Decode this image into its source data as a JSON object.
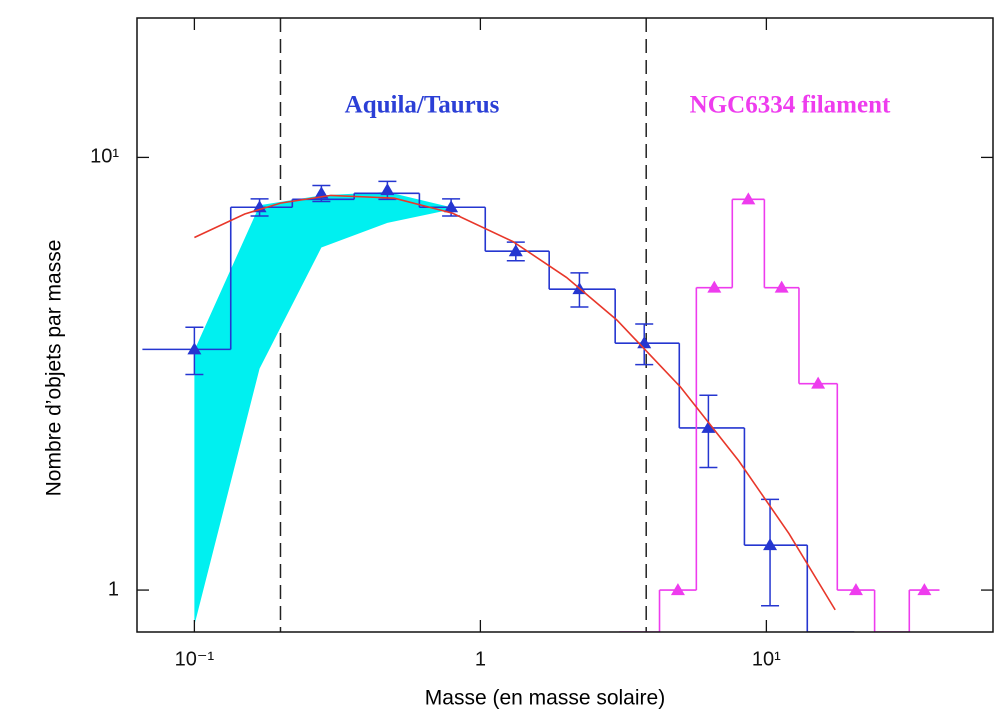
{
  "chart_data": {
    "type": "line",
    "xlabel": "Masse (en masse solaire)",
    "ylabel": "Nombre d’objets par masse",
    "xscale": "log",
    "yscale": "log",
    "xlim": [
      0.063,
      62
    ],
    "ylim": [
      0.8,
      21
    ],
    "xticks": [
      {
        "value": 0.1,
        "label": "10⁻¹"
      },
      1,
      {
        "value": 10,
        "label": "10¹"
      }
    ],
    "yticks": [
      1,
      {
        "value": 10,
        "label": "10¹"
      }
    ],
    "vlines": [
      0.2,
      3.8
    ],
    "annotations": [
      {
        "text": "Aquila/Taurus",
        "color": "#2b3fd6"
      },
      {
        "text": "NGC6334 filament",
        "color": "#ee3cee"
      }
    ],
    "series": [
      {
        "type": "band",
        "color": "#00f0f0",
        "x": [
          0.1,
          0.169,
          0.278,
          0.473,
          0.79
        ],
        "upper": [
          3.58,
          7.75,
          8.17,
          8.32,
          7.67
        ],
        "lower": [
          0.83,
          3.25,
          6.19,
          7.06,
          7.58
        ]
      },
      {
        "type": "step",
        "color": "#2536d0",
        "bins": [
          0.0658,
          0.134,
          0.22,
          0.362,
          0.612,
          1.04,
          1.74,
          2.96,
          4.96,
          8.38,
          13.9,
          20.3
        ],
        "values": [
          3.6,
          7.67,
          8.0,
          8.26,
          7.67,
          6.07,
          4.96,
          3.72,
          2.37,
          1.27,
          0.8
        ]
      },
      {
        "type": "step",
        "color": "#ee3cee",
        "markers": true,
        "bins": [
          3.06,
          4.23,
          5.69,
          7.6,
          9.84,
          13.0,
          17.7,
          23.9,
          31.6,
          40.3
        ],
        "values": [
          0.8,
          1,
          5,
          8,
          5,
          3,
          1,
          0.8,
          1
        ]
      },
      {
        "type": "errorbar",
        "color": "#2536d0",
        "x": [
          0.1,
          0.169,
          0.278,
          0.473,
          0.79,
          1.33,
          2.22,
          3.74,
          6.27,
          10.3
        ],
        "values": [
          3.6,
          7.67,
          8.26,
          8.4,
          7.67,
          6.07,
          4.96,
          3.72,
          2.37,
          1.27
        ],
        "errors": [
          0.45,
          0.35,
          0.35,
          0.4,
          0.35,
          0.3,
          0.45,
          0.4,
          0.45,
          0.35
        ]
      },
      {
        "type": "line",
        "color": "#e8372a",
        "x": [
          0.1,
          0.15,
          0.2,
          0.3,
          0.5,
          0.8,
          1.3,
          2,
          3,
          5,
          8,
          12,
          17.4
        ],
        "values": [
          6.53,
          7.4,
          7.84,
          8.17,
          8.05,
          7.43,
          6.39,
          5.28,
          4.21,
          2.95,
          1.99,
          1.35,
          0.9
        ]
      }
    ]
  }
}
